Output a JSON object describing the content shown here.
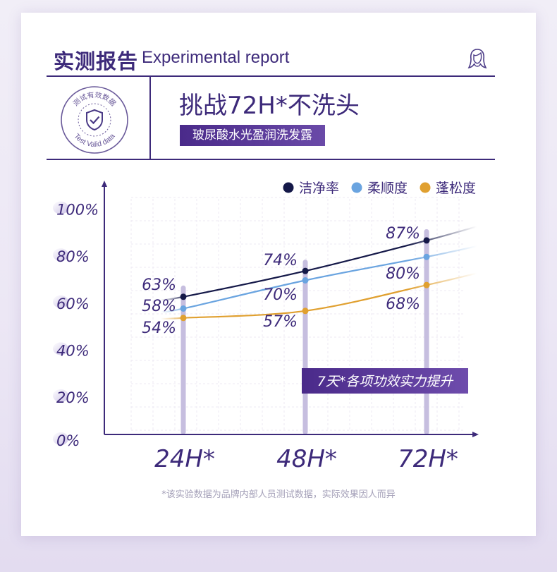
{
  "header": {
    "title_cn": "实测报告",
    "title_en": "Experimental report",
    "hair_icon": "woman-hair-icon"
  },
  "seal": {
    "text_top": "测试有效数据",
    "text_bottom": "Test Valid data",
    "icon": "shield-check-icon"
  },
  "headline": "挑战72H*不洗头",
  "product_badge": "玻尿酸水光盈润洗发露",
  "chart_data": {
    "type": "line",
    "title": "",
    "categories": [
      "24H*",
      "48H*",
      "72H*"
    ],
    "y_ticks": [
      "0%",
      "20%",
      "40%",
      "60%",
      "80%",
      "100%"
    ],
    "ylim": [
      0,
      100
    ],
    "legend_position": "top-right",
    "series": [
      {
        "name": "洁净率",
        "color": "#141848",
        "values": [
          63,
          74,
          87
        ],
        "labels": [
          "63%",
          "74%",
          "87%"
        ]
      },
      {
        "name": "柔顺度",
        "color": "#6aa4e0",
        "values": [
          58,
          70,
          80
        ],
        "labels": [
          "58%",
          "70%",
          "80%"
        ]
      },
      {
        "name": "蓬松度",
        "color": "#e0a030",
        "values": [
          54,
          57,
          68
        ],
        "labels": [
          "54%",
          "57%",
          "68%"
        ]
      }
    ],
    "annotation": "7天*各项功效实力提升"
  },
  "footnote": "*该实验数据为品牌内部人员测试数据，实际效果因人而异"
}
